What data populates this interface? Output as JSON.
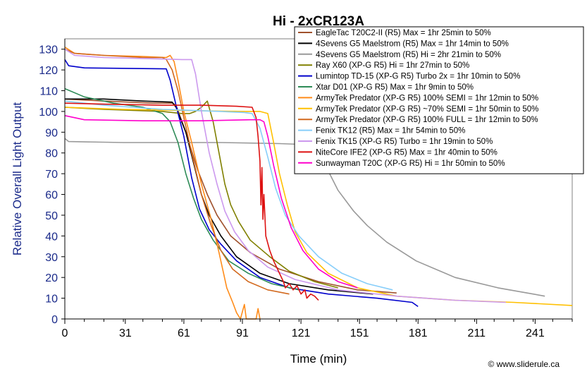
{
  "chart_data": {
    "type": "line",
    "title": "Hi - 2xCR123A",
    "xlabel": "Time (min)",
    "ylabel": "Relative Overall Light Output",
    "xlim": [
      0,
      260
    ],
    "ylim": [
      0,
      135
    ],
    "xticks": [
      0,
      31,
      61,
      91,
      121,
      151,
      181,
      211,
      241
    ],
    "yticks": [
      0,
      10,
      20,
      30,
      40,
      50,
      60,
      70,
      80,
      90,
      100,
      110,
      120,
      130
    ],
    "grid": false,
    "legend_position": "top-right",
    "credit": "© www.sliderule.ca",
    "series": [
      {
        "name": "EagleTac T20C2-II (R5) Max = 1hr 25min to 50%",
        "color": "#a0522d",
        "points": [
          [
            0,
            106
          ],
          [
            20,
            105
          ],
          [
            45,
            104
          ],
          [
            55,
            104
          ],
          [
            57,
            103
          ],
          [
            62,
            90
          ],
          [
            68,
            72
          ],
          [
            73,
            60
          ],
          [
            78,
            50
          ],
          [
            85,
            40
          ],
          [
            95,
            32
          ],
          [
            110,
            24
          ],
          [
            130,
            18
          ],
          [
            150,
            14
          ],
          [
            170,
            12.5
          ]
        ]
      },
      {
        "name": "4Sevens G5 Maelstrom (R5) Max = 1hr 14min to 50%",
        "color": "#000000",
        "points": [
          [
            0,
            106
          ],
          [
            20,
            106
          ],
          [
            40,
            105
          ],
          [
            55,
            104.5
          ],
          [
            57,
            102
          ],
          [
            62,
            90
          ],
          [
            66,
            75
          ],
          [
            70,
            60
          ],
          [
            74,
            50
          ],
          [
            80,
            40
          ],
          [
            88,
            30
          ],
          [
            100,
            22
          ],
          [
            115,
            17
          ],
          [
            135,
            14
          ],
          [
            158,
            12
          ]
        ]
      },
      {
        "name": "4Sevens G5 Maelstrom (R5) Hi = 2hr 21min to 50%",
        "color": "#999999",
        "points": [
          [
            0,
            87
          ],
          [
            2,
            85.5
          ],
          [
            30,
            85
          ],
          [
            80,
            85
          ],
          [
            110,
            84.5
          ],
          [
            125,
            84
          ],
          [
            128,
            82
          ],
          [
            133,
            75
          ],
          [
            140,
            62
          ],
          [
            148,
            52
          ],
          [
            155,
            45
          ],
          [
            165,
            37
          ],
          [
            180,
            28
          ],
          [
            200,
            20
          ],
          [
            222,
            15
          ],
          [
            240,
            12
          ],
          [
            246,
            11
          ]
        ]
      },
      {
        "name": "Ray X60 (XP-G R5) Hi = 1hr 27min to 50%",
        "color": "#808000",
        "points": [
          [
            0,
            102
          ],
          [
            20,
            101
          ],
          [
            50,
            100
          ],
          [
            60,
            99
          ],
          [
            64,
            99
          ],
          [
            67,
            100
          ],
          [
            70,
            102
          ],
          [
            73,
            105
          ],
          [
            76,
            95
          ],
          [
            79,
            80
          ],
          [
            82,
            65
          ],
          [
            85,
            55
          ],
          [
            89,
            47
          ],
          [
            95,
            38
          ],
          [
            105,
            30
          ],
          [
            115,
            23
          ],
          [
            128,
            18
          ],
          [
            140,
            15
          ]
        ]
      },
      {
        "name": "Lumintop TD-15 (XP-G R5) Turbo 2x = 1hr 10min to 50%",
        "color": "#0000cc",
        "points": [
          [
            0,
            125
          ],
          [
            2,
            122
          ],
          [
            10,
            121
          ],
          [
            52,
            120.5
          ],
          [
            54,
            115
          ],
          [
            57,
            103
          ],
          [
            61,
            88
          ],
          [
            65,
            68
          ],
          [
            69,
            53
          ],
          [
            74,
            43
          ],
          [
            80,
            36
          ],
          [
            88,
            28
          ],
          [
            100,
            20
          ],
          [
            115,
            15
          ],
          [
            135,
            12
          ],
          [
            160,
            10
          ],
          [
            178,
            8
          ],
          [
            181,
            6
          ]
        ]
      },
      {
        "name": "Xtar D01 (XP-G R5) Max = 1hr 9min to 50%",
        "color": "#2e8b57",
        "points": [
          [
            0,
            111
          ],
          [
            10,
            107
          ],
          [
            25,
            104
          ],
          [
            40,
            102
          ],
          [
            50,
            99
          ],
          [
            54,
            95
          ],
          [
            58,
            85
          ],
          [
            62,
            70
          ],
          [
            66,
            58
          ],
          [
            70,
            48
          ],
          [
            76,
            38
          ],
          [
            84,
            28
          ],
          [
            94,
            22
          ],
          [
            106,
            17
          ],
          [
            120,
            14
          ]
        ]
      },
      {
        "name": "ArmyTek Predator (XP-G R5) 100% SEMI = 1hr 12min to 50%",
        "color": "#ff8c1a",
        "points": [
          [
            0,
            131
          ],
          [
            5,
            128
          ],
          [
            20,
            127
          ],
          [
            40,
            126.5
          ],
          [
            52,
            126
          ],
          [
            54,
            127
          ],
          [
            56,
            124
          ],
          [
            58,
            115
          ],
          [
            61,
            100
          ],
          [
            65,
            85
          ],
          [
            70,
            65
          ],
          [
            75,
            48
          ],
          [
            79,
            32
          ],
          [
            83,
            15
          ],
          [
            86,
            8
          ],
          [
            88,
            3
          ],
          [
            90,
            0
          ],
          [
            92,
            7
          ],
          [
            93,
            0
          ],
          [
            98,
            0
          ],
          [
            99,
            5
          ],
          [
            100,
            0
          ]
        ]
      },
      {
        "name": "ArmyTek Predator (XP-G R5) ~70% SEMI = 1hr 50min to 50%",
        "color": "#ffc000",
        "points": [
          [
            0,
            102
          ],
          [
            30,
            101
          ],
          [
            60,
            100.5
          ],
          [
            90,
            100
          ],
          [
            100,
            100
          ],
          [
            104,
            99
          ],
          [
            107,
            85
          ],
          [
            110,
            70
          ],
          [
            114,
            55
          ],
          [
            118,
            42
          ],
          [
            124,
            32
          ],
          [
            135,
            22
          ],
          [
            150,
            15
          ],
          [
            170,
            11
          ],
          [
            200,
            9
          ],
          [
            230,
            8
          ],
          [
            260,
            6.5
          ]
        ]
      },
      {
        "name": "ArmyTek Predator (XP-G R5) 100% FULL = 1hr 12min to 50%",
        "color": "#d2691e",
        "points": [
          [
            0,
            130
          ],
          [
            5,
            128
          ],
          [
            20,
            127
          ],
          [
            40,
            126
          ],
          [
            50,
            126
          ],
          [
            52,
            125
          ],
          [
            55,
            120
          ],
          [
            58,
            110
          ],
          [
            61,
            97
          ],
          [
            65,
            80
          ],
          [
            70,
            60
          ],
          [
            75,
            45
          ],
          [
            80,
            33
          ],
          [
            86,
            24
          ],
          [
            94,
            18
          ],
          [
            104,
            14
          ],
          [
            115,
            12
          ]
        ]
      },
      {
        "name": "Fenix TK12 (R5) Max = 1hr 54min to 50%",
        "color": "#87cefa",
        "points": [
          [
            0,
            105
          ],
          [
            20,
            103
          ],
          [
            50,
            101
          ],
          [
            80,
            100
          ],
          [
            92,
            99.5
          ],
          [
            96,
            99
          ],
          [
            100,
            92
          ],
          [
            104,
            78
          ],
          [
            108,
            63
          ],
          [
            113,
            50
          ],
          [
            120,
            40
          ],
          [
            130,
            30
          ],
          [
            142,
            22
          ],
          [
            155,
            17
          ],
          [
            168,
            14
          ]
        ]
      },
      {
        "name": "Fenix TK15 (XP-G R5) Turbo = 1hr 19min to 50%",
        "color": "#cc99ee",
        "points": [
          [
            0,
            130
          ],
          [
            5,
            127
          ],
          [
            20,
            126
          ],
          [
            40,
            125.5
          ],
          [
            60,
            125
          ],
          [
            65,
            125
          ],
          [
            67,
            118
          ],
          [
            70,
            100
          ],
          [
            74,
            80
          ],
          [
            78,
            65
          ],
          [
            82,
            52
          ],
          [
            87,
            42
          ],
          [
            94,
            33
          ],
          [
            104,
            25
          ],
          [
            118,
            19
          ],
          [
            140,
            14
          ],
          [
            170,
            11
          ],
          [
            200,
            9
          ],
          [
            226,
            8
          ]
        ]
      },
      {
        "name": "NiteCore IFE2 (XP-G R5) Max = 1hr 40min to 50%",
        "color": "#dd1111",
        "points": [
          [
            0,
            104
          ],
          [
            20,
            103.5
          ],
          [
            50,
            103
          ],
          [
            70,
            103
          ],
          [
            88,
            102.5
          ],
          [
            96,
            102
          ],
          [
            98,
            97
          ],
          [
            99,
            88
          ],
          [
            100,
            76
          ],
          [
            100.5,
            55
          ],
          [
            101,
            73
          ],
          [
            101.5,
            48
          ],
          [
            102,
            60
          ],
          [
            103,
            40
          ],
          [
            105,
            33
          ],
          [
            107,
            28
          ],
          [
            110,
            22
          ],
          [
            112,
            18
          ],
          [
            113,
            15
          ],
          [
            115,
            17
          ],
          [
            117,
            14
          ],
          [
            119,
            16
          ],
          [
            121,
            12
          ],
          [
            123,
            14
          ],
          [
            124,
            10
          ],
          [
            126,
            12
          ],
          [
            128,
            11
          ],
          [
            130,
            9
          ]
        ]
      },
      {
        "name": "Sunwayman T20C (XP-G R5) Hi = 1hr 50min to 50%",
        "color": "#ff00cc",
        "points": [
          [
            0,
            98
          ],
          [
            10,
            96
          ],
          [
            40,
            95.5
          ],
          [
            70,
            95.5
          ],
          [
            95,
            96
          ],
          [
            100,
            96
          ],
          [
            102,
            95
          ],
          [
            104,
            88
          ],
          [
            107,
            74
          ],
          [
            111,
            58
          ],
          [
            116,
            44
          ],
          [
            122,
            33
          ],
          [
            130,
            24
          ],
          [
            140,
            18
          ],
          [
            150,
            15
          ]
        ]
      }
    ]
  }
}
